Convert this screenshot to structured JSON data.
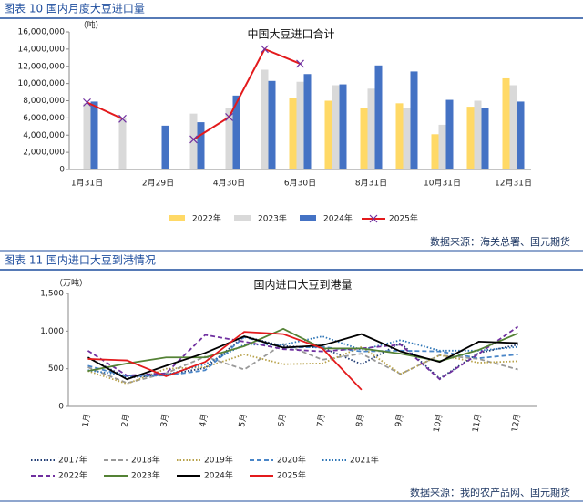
{
  "chart_data": [
    {
      "type": "bar",
      "caption": "图表 10 国内月度大豆进口量",
      "title": "中国大豆进口合计",
      "y_axis_label": "（吨）",
      "source": "数据来源：海关总署、国元期货",
      "categories": [
        "1月31日",
        null,
        "2月29日",
        null,
        "4月30日",
        null,
        "6月30日",
        null,
        "8月31日",
        null,
        "10月31日",
        null,
        "12月31日"
      ],
      "series": [
        {
          "name": "2022年",
          "color": "#ffd966",
          "kind": "bar",
          "values": [
            null,
            null,
            null,
            null,
            null,
            null,
            8300000,
            8000000,
            7200000,
            7700000,
            4100000,
            7300000,
            10600000
          ]
        },
        {
          "name": "2023年",
          "color": "#d9d9d9",
          "kind": "bar",
          "values": [
            7700000,
            6000000,
            null,
            6500000,
            7200000,
            11600000,
            10200000,
            9800000,
            9400000,
            7200000,
            5200000,
            8000000,
            9800000
          ]
        },
        {
          "name": "2024年",
          "color": "#4472c4",
          "kind": "bar",
          "values": [
            7900000,
            null,
            5100000,
            5500000,
            8600000,
            10300000,
            11100000,
            9900000,
            12100000,
            11400000,
            8100000,
            7200000,
            7900000
          ]
        },
        {
          "name": "2025年",
          "color": "#e31a1c",
          "kind": "line",
          "values": [
            7800000,
            5900000,
            null,
            3500000,
            6100000,
            14000000,
            12300000,
            null,
            null,
            null,
            null,
            null,
            null
          ]
        }
      ],
      "ylim": [
        0,
        16000000
      ],
      "yticks": [
        0,
        {
          "value": 2000000,
          "label": "2,000,000"
        },
        {
          "value": 4000000,
          "label": "4,000,000"
        },
        {
          "value": 6000000,
          "label": "6,000,000"
        },
        {
          "value": 8000000,
          "label": "8,000,000"
        },
        {
          "value": 10000000,
          "label": "10,000,000"
        },
        {
          "value": 12000000,
          "label": "12,000,000"
        },
        {
          "value": 14000000,
          "label": "14,000,000"
        },
        {
          "value": 16000000,
          "label": "16,000,000"
        }
      ],
      "legend": "bottom"
    },
    {
      "type": "line",
      "caption": "图表 11 国内进口大豆到港情况",
      "title": "国内进口大豆到港量",
      "y_axis_label": "（万吨）",
      "source": "数据来源：我的农产品网、国元期货",
      "categories": [
        "1月",
        "2月",
        "3月",
        "4月",
        "5月",
        "6月",
        "7月",
        "8月",
        "9月",
        "10月",
        "11月",
        "12月"
      ],
      "series": [
        {
          "name": "2017年",
          "color": "#1f3b73",
          "dash": "dotted",
          "values": [
            650,
            380,
            420,
            510,
            930,
            800,
            780,
            560,
            840,
            370,
            710,
            820
          ]
        },
        {
          "name": "2018年",
          "color": "#999999",
          "dash": "dashed",
          "values": [
            520,
            310,
            440,
            660,
            490,
            830,
            620,
            700,
            430,
            680,
            630,
            490
          ]
        },
        {
          "name": "2019年",
          "color": "#b8a24a",
          "dash": "dotted",
          "values": [
            470,
            300,
            500,
            520,
            690,
            560,
            570,
            790,
            430,
            680,
            580,
            600
          ]
        },
        {
          "name": "2020年",
          "color": "#4a86c8",
          "dash": "dashed",
          "values": [
            540,
            400,
            410,
            480,
            920,
            780,
            790,
            730,
            740,
            730,
            640,
            690
          ]
        },
        {
          "name": "2021年",
          "color": "#2e75b6",
          "dash": "dotted",
          "values": [
            480,
            410,
            420,
            560,
            820,
            820,
            930,
            750,
            880,
            740,
            740,
            790
          ]
        },
        {
          "name": "2022年",
          "color": "#7030a0",
          "dash": "dashed",
          "values": [
            740,
            410,
            440,
            950,
            860,
            760,
            730,
            770,
            820,
            360,
            700,
            1060
          ]
        },
        {
          "name": "2023年",
          "color": "#548235",
          "dash": "solid",
          "values": [
            470,
            570,
            650,
            650,
            800,
            1030,
            770,
            770,
            700,
            600,
            750,
            970
          ]
        },
        {
          "name": "2024年",
          "color": "#000000",
          "dash": "solid",
          "values": [
            650,
            360,
            540,
            710,
            930,
            780,
            810,
            960,
            730,
            590,
            860,
            840
          ]
        },
        {
          "name": "2025年",
          "color": "#e31a1c",
          "dash": "solid",
          "values": [
            630,
            610,
            400,
            590,
            990,
            960,
            770,
            220,
            null,
            null,
            null,
            null
          ]
        }
      ],
      "ylim": [
        0,
        1500
      ],
      "yticks": [
        0,
        500,
        {
          "value": 1000,
          "label": "1,000"
        },
        {
          "value": 1500,
          "label": "1,500"
        }
      ],
      "legend": "bottom"
    }
  ]
}
